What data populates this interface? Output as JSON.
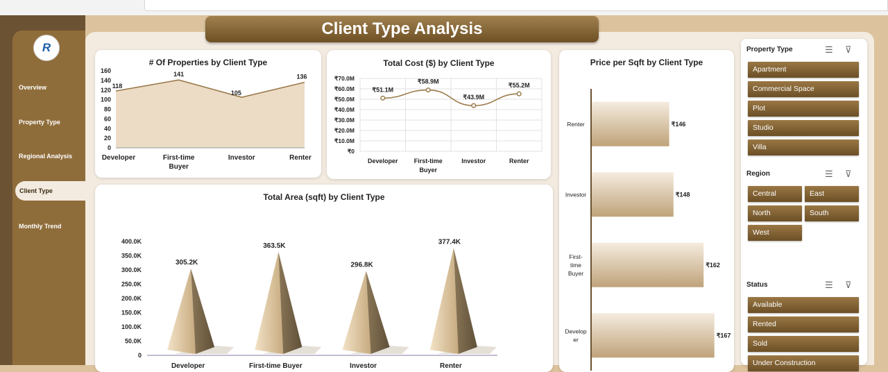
{
  "title": "Client Type Analysis",
  "nav": [
    {
      "label": "Overview"
    },
    {
      "label": "Property Type"
    },
    {
      "label": "Regional Analysis"
    },
    {
      "label": "Client Type"
    },
    {
      "label": "Monthly Trend"
    }
  ],
  "colors": {
    "accent": "#8f6d3b",
    "dark": "#6b5232",
    "line": "#9a7a4a",
    "fill": "#ecdcc6",
    "bar_light": "#f3e8d7",
    "bar_dark": "#c3a983"
  },
  "charts": {
    "properties": {
      "title": "# Of Properties by Client Type",
      "type": "area",
      "categories": [
        "Developer",
        "First-time Buyer",
        "Investor",
        "Renter"
      ],
      "values": [
        118,
        141,
        105,
        136
      ],
      "data_labels": [
        "118",
        "141",
        "105",
        "136"
      ],
      "ylim": [
        0,
        160
      ],
      "yticks": [
        "0",
        "20",
        "40",
        "60",
        "80",
        "100",
        "120",
        "140",
        "160"
      ]
    },
    "cost": {
      "title": "Total Cost ($) by Client Type",
      "type": "line",
      "categories": [
        "Developer",
        "First-time Buyer",
        "Investor",
        "Renter"
      ],
      "values": [
        51.1,
        58.9,
        43.9,
        55.2
      ],
      "data_labels": [
        "₹51.1M",
        "₹58.9M",
        "₹43.9M",
        "₹55.2M"
      ],
      "ylim": [
        0,
        70
      ],
      "yticks": [
        "₹0",
        "₹10.0M",
        "₹20.0M",
        "₹30.0M",
        "₹40.0M",
        "₹50.0M",
        "₹60.0M",
        "₹70.0M"
      ]
    },
    "area": {
      "title": "Total Area (sqft) by Client Type",
      "type": "bar",
      "categories": [
        "Developer",
        "First-time Buyer",
        "Investor",
        "Renter"
      ],
      "values": [
        305.2,
        363.5,
        296.8,
        377.4
      ],
      "data_labels": [
        "305.2K",
        "363.5K",
        "296.8K",
        "377.4K"
      ],
      "ylim": [
        0,
        400
      ],
      "yticks": [
        "0",
        "50.0K",
        "100.0K",
        "150.0K",
        "200.0K",
        "250.0K",
        "300.0K",
        "350.0K",
        "400.0K"
      ]
    },
    "price": {
      "title": "Price per Sqft by Client Type",
      "type": "bar",
      "categories": [
        "Renter",
        "Investor",
        "First-time Buyer",
        "Developer"
      ],
      "values": [
        146,
        148,
        162,
        167
      ],
      "data_labels": [
        "₹146",
        "₹148",
        "₹162",
        "₹167"
      ]
    }
  },
  "slicers": [
    {
      "title": "Property Type",
      "items": [
        "Apartment",
        "Commercial Space",
        "Plot",
        "Studio",
        "Villa"
      ]
    },
    {
      "title": "Region",
      "items": [
        "Central",
        "East",
        "North",
        "South",
        "West"
      ]
    },
    {
      "title": "Status",
      "items": [
        "Available",
        "Rented",
        "Sold",
        "Under Construction"
      ]
    }
  ],
  "icons": {
    "multiselect": "multi-select-icon",
    "clear": "clear-filter-icon"
  }
}
